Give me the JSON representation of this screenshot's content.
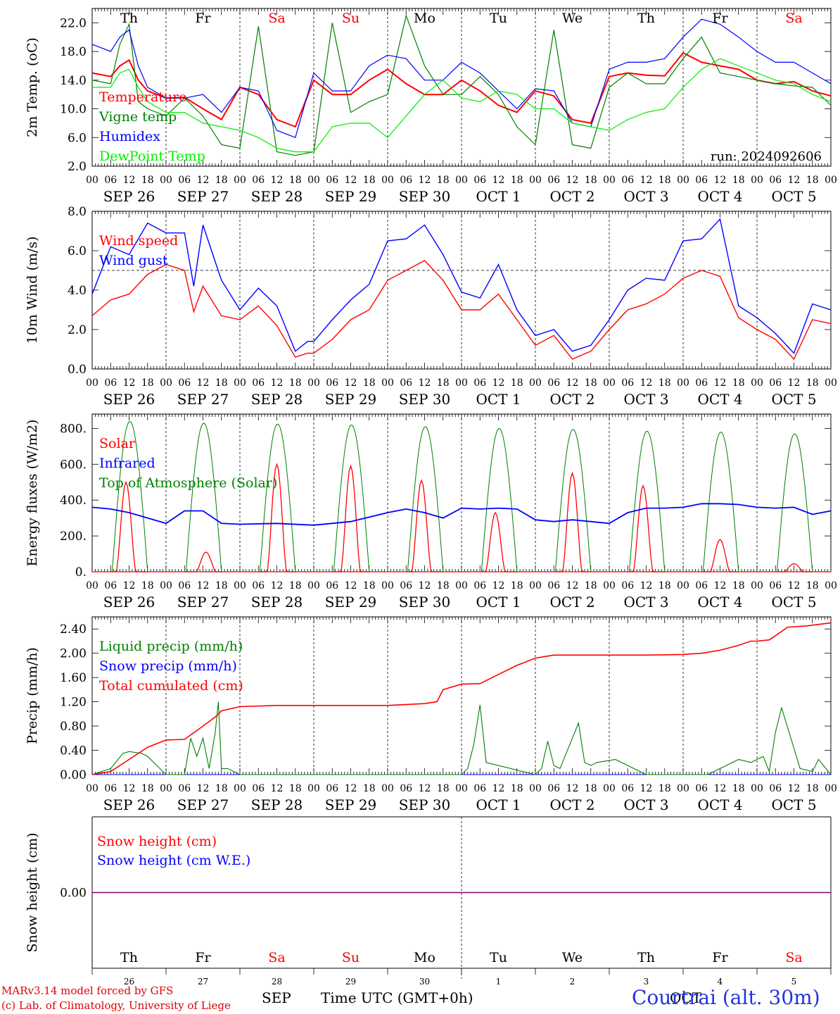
{
  "station": "Courtrai (alt. 30m)",
  "run_label": "run: 2024092606",
  "credits": [
    "MARv3.14 model forced by GFS",
    "(c) Lab. of Climatology, University of Liege"
  ],
  "time_axis_label": "Time UTC (GMT+0h)",
  "month_label_sep": "SEP",
  "month_label_oct": "OCT",
  "hour_ticks": [
    "00",
    "06",
    "12",
    "18"
  ],
  "end_tick": "00",
  "days": [
    {
      "weekday": "Th",
      "date": "SEP 26",
      "num": "26",
      "weekend": false
    },
    {
      "weekday": "Fr",
      "date": "SEP 27",
      "num": "27",
      "weekend": false
    },
    {
      "weekday": "Sa",
      "date": "SEP 28",
      "num": "28",
      "weekend": true
    },
    {
      "weekday": "Su",
      "date": "SEP 29",
      "num": "29",
      "weekend": true
    },
    {
      "weekday": "Mo",
      "date": "SEP 30",
      "num": "30",
      "weekend": false
    },
    {
      "weekday": "Tu",
      "date": "OCT  1",
      "num": "1",
      "weekend": false
    },
    {
      "weekday": "We",
      "date": "OCT  2",
      "num": "2",
      "weekend": false
    },
    {
      "weekday": "Th",
      "date": "OCT  3",
      "num": "3",
      "weekend": false
    },
    {
      "weekday": "Fr",
      "date": "OCT  4",
      "num": "4",
      "weekend": false
    },
    {
      "weekday": "Sa",
      "date": "OCT  5",
      "num": "5",
      "weekend": true
    }
  ],
  "colors": {
    "red": "#ff0000",
    "green": "#008000",
    "blue": "#0000ff",
    "lightgreen": "#00ee00",
    "purple": "#800080",
    "weekend": "#ff0000"
  },
  "chart_data": [
    {
      "type": "line",
      "id": "temp",
      "ylabel": "2m Temp. (oC)",
      "ylim": [
        2,
        24
      ],
      "yticks": [
        2,
        6,
        10,
        14,
        18,
        22
      ],
      "ytick_labels": [
        "2.0",
        "6.0",
        "10.0",
        "14.0",
        "18.0",
        "22.0"
      ],
      "x_unit": "hours since SEP 26 00 UTC",
      "xlim": [
        0,
        240
      ],
      "series": [
        {
          "name": "Temperature",
          "color": "red",
          "x": [
            0,
            6,
            9,
            12,
            15,
            18,
            24,
            30,
            36,
            42,
            48,
            54,
            60,
            66,
            72,
            78,
            84,
            90,
            96,
            102,
            108,
            114,
            120,
            126,
            132,
            138,
            144,
            150,
            156,
            162,
            168,
            174,
            180,
            186,
            192,
            198,
            204,
            210,
            216,
            222,
            228,
            234,
            240
          ],
          "y": [
            15,
            14.5,
            16,
            16.8,
            14,
            12.5,
            11.5,
            11.6,
            10,
            8.5,
            13,
            12,
            8.5,
            7.5,
            14,
            12,
            12,
            14,
            15.5,
            13.5,
            12,
            12,
            14,
            12.5,
            10.5,
            9.5,
            12.5,
            11.8,
            8.5,
            8,
            14.5,
            15,
            14.7,
            14.6,
            17.8,
            16.5,
            16,
            15.5,
            14,
            13.5,
            13.8,
            12.5,
            11.8
          ]
        },
        {
          "name": "Vigne temp",
          "color": "green",
          "x": [
            0,
            6,
            9,
            12,
            15,
            18,
            24,
            30,
            36,
            42,
            48,
            54,
            60,
            66,
            72,
            78,
            84,
            90,
            96,
            102,
            108,
            114,
            120,
            126,
            132,
            138,
            144,
            150,
            156,
            162,
            168,
            174,
            180,
            186,
            192,
            198,
            204,
            210,
            216,
            222,
            228,
            234,
            240
          ],
          "y": [
            14,
            13.5,
            19,
            21.8,
            11,
            10,
            9,
            11.5,
            9,
            5,
            4.5,
            21.5,
            4,
            3.5,
            4,
            22,
            9.5,
            11,
            12,
            23,
            16,
            12,
            12,
            14.5,
            12,
            7.5,
            5,
            21,
            5,
            4.5,
            13,
            15,
            13.5,
            13.5,
            17,
            20,
            15,
            14.5,
            14,
            13.5,
            13.2,
            13,
            10.5
          ]
        },
        {
          "name": "Humidex",
          "color": "blue",
          "x": [
            0,
            6,
            9,
            12,
            15,
            18,
            24,
            30,
            36,
            42,
            48,
            54,
            60,
            66,
            72,
            78,
            84,
            90,
            96,
            102,
            108,
            114,
            120,
            126,
            132,
            138,
            144,
            150,
            156,
            162,
            168,
            174,
            180,
            186,
            192,
            198,
            204,
            210,
            216,
            222,
            228,
            234,
            240
          ],
          "y": [
            19,
            18,
            20,
            21,
            16,
            13,
            11.5,
            11.5,
            12,
            9.5,
            13,
            12.5,
            7,
            6,
            15,
            12.5,
            12.5,
            16,
            17.5,
            17,
            14,
            14,
            16.5,
            15,
            12.5,
            10,
            12.8,
            12.5,
            8,
            7.5,
            15.5,
            16.5,
            16.5,
            17,
            20,
            22.5,
            21.8,
            20,
            18,
            16.5,
            16.5,
            15,
            13.5
          ]
        },
        {
          "name": "DewPoint Temp",
          "color": "lightgreen",
          "x": [
            0,
            6,
            9,
            12,
            15,
            18,
            24,
            30,
            36,
            42,
            48,
            54,
            60,
            66,
            72,
            78,
            84,
            90,
            96,
            102,
            108,
            114,
            120,
            126,
            132,
            138,
            144,
            150,
            156,
            162,
            168,
            174,
            180,
            186,
            192,
            198,
            204,
            210,
            216,
            222,
            228,
            234,
            240
          ],
          "y": [
            13,
            13,
            15,
            15.5,
            13,
            11,
            9.5,
            9.5,
            8,
            7.5,
            7,
            6,
            4.5,
            4,
            4,
            7.5,
            8,
            8,
            6,
            9,
            12,
            14,
            11.5,
            11,
            12.5,
            12,
            10,
            10,
            8,
            7.5,
            7,
            8.5,
            9.5,
            10,
            13,
            15.5,
            17,
            16,
            15,
            14,
            13.5,
            12,
            11
          ]
        }
      ]
    },
    {
      "type": "line",
      "id": "wind",
      "ylabel": "10m Wind (m/s)",
      "ylim": [
        0,
        8
      ],
      "yticks": [
        0,
        2,
        4,
        6,
        8
      ],
      "ytick_labels": [
        "0.0",
        "2.0",
        "4.0",
        "6.0",
        "8.0"
      ],
      "reference_line": 5,
      "x_unit": "hours since SEP 26 00 UTC",
      "xlim": [
        0,
        240
      ],
      "series": [
        {
          "name": "Wind speed",
          "color": "red",
          "x": [
            0,
            6,
            12,
            18,
            24,
            30,
            33,
            36,
            42,
            48,
            54,
            60,
            66,
            70,
            72,
            78,
            84,
            90,
            96,
            102,
            108,
            114,
            120,
            126,
            132,
            138,
            144,
            150,
            156,
            162,
            168,
            174,
            180,
            186,
            192,
            198,
            204,
            210,
            216,
            222,
            228,
            234,
            240
          ],
          "y": [
            2.7,
            3.5,
            3.8,
            4.8,
            5.3,
            5.0,
            2.9,
            4.2,
            2.7,
            2.5,
            3.2,
            2.2,
            0.6,
            0.8,
            0.8,
            1.5,
            2.5,
            3.0,
            4.5,
            5.0,
            5.5,
            4.5,
            3.0,
            3.0,
            3.8,
            2.5,
            1.2,
            1.7,
            0.5,
            0.9,
            2.0,
            3.0,
            3.3,
            3.8,
            4.6,
            5.0,
            4.7,
            2.6,
            2.0,
            1.5,
            0.5,
            2.5,
            2.3
          ]
        },
        {
          "name": "Wind gust",
          "color": "blue",
          "x": [
            0,
            6,
            12,
            18,
            24,
            30,
            33,
            36,
            42,
            48,
            54,
            60,
            66,
            70,
            72,
            78,
            84,
            90,
            96,
            102,
            108,
            114,
            120,
            126,
            132,
            138,
            144,
            150,
            156,
            162,
            168,
            174,
            180,
            186,
            192,
            198,
            204,
            210,
            216,
            222,
            228,
            234,
            240
          ],
          "y": [
            3.8,
            6.2,
            5.8,
            7.4,
            6.9,
            6.9,
            4.2,
            7.3,
            4.5,
            3.0,
            4.1,
            3.2,
            0.9,
            1.4,
            1.4,
            2.5,
            3.5,
            4.3,
            6.5,
            6.6,
            7.3,
            5.8,
            3.9,
            3.6,
            5.3,
            3.0,
            1.7,
            2.0,
            0.9,
            1.2,
            2.5,
            4.0,
            4.6,
            4.5,
            6.5,
            6.6,
            7.6,
            3.2,
            2.6,
            1.8,
            0.8,
            3.3,
            3.0
          ]
        }
      ]
    },
    {
      "type": "line",
      "id": "flux",
      "ylabel": "Energy fluxes (W/m2)",
      "ylim": [
        0,
        880
      ],
      "yticks": [
        0,
        200,
        400,
        600,
        800
      ],
      "ytick_labels": [
        "0.",
        "200.",
        "400.",
        "600.",
        "800."
      ],
      "x_unit": "hours since SEP 26 00 UTC",
      "xlim": [
        0,
        240
      ],
      "series": [
        {
          "name": "Solar",
          "color": "red",
          "peak_hour_of_day": [
            11,
            13,
            12,
            12,
            11,
            11,
            12,
            11,
            12,
            12
          ],
          "peak_value": [
            500,
            110,
            600,
            590,
            510,
            330,
            550,
            480,
            180,
            45
          ]
        },
        {
          "name": "Infrared",
          "color": "blue",
          "x": [
            0,
            6,
            12,
            18,
            24,
            30,
            36,
            42,
            48,
            60,
            72,
            84,
            96,
            102,
            108,
            114,
            120,
            126,
            132,
            138,
            144,
            150,
            156,
            162,
            168,
            174,
            180,
            186,
            192,
            198,
            204,
            210,
            216,
            222,
            228,
            234,
            240
          ],
          "y": [
            360,
            350,
            330,
            300,
            270,
            340,
            340,
            270,
            265,
            270,
            260,
            280,
            330,
            350,
            330,
            300,
            355,
            350,
            355,
            350,
            290,
            280,
            290,
            280,
            270,
            330,
            355,
            355,
            360,
            380,
            380,
            375,
            360,
            355,
            360,
            320,
            340
          ]
        },
        {
          "name": "Top of Atmosphere (Solar)",
          "color": "green",
          "peak_value": [
            840,
            830,
            825,
            820,
            810,
            800,
            795,
            785,
            780,
            770
          ]
        }
      ]
    },
    {
      "type": "line",
      "id": "precip",
      "ylabel": "Precip (mm/h)",
      "ylim": [
        0,
        2.6
      ],
      "yticks": [
        0,
        0.4,
        0.8,
        1.2,
        1.6,
        2.0,
        2.4
      ],
      "ytick_labels": [
        "0.00",
        "0.40",
        "0.80",
        "1.20",
        "1.60",
        "2.00",
        "2.40"
      ],
      "x_unit": "hours since SEP 26 00 UTC",
      "xlim": [
        0,
        240
      ],
      "series": [
        {
          "name": "Liquid precip (mm/h)",
          "color": "green",
          "x": [
            0,
            6,
            10,
            12,
            16,
            18,
            22,
            24,
            30,
            32,
            34,
            36,
            38,
            40,
            41,
            42,
            44,
            48,
            120,
            122,
            124,
            126,
            128,
            144,
            146,
            148,
            150,
            152,
            158,
            160,
            162,
            164,
            170,
            180,
            186,
            200,
            204,
            210,
            214,
            218,
            220,
            222,
            224,
            230,
            234,
            236,
            240
          ],
          "y": [
            0,
            0.1,
            0.35,
            0.38,
            0.35,
            0.3,
            0.1,
            0,
            0,
            0.6,
            0.3,
            0.6,
            0.1,
            0.7,
            1.2,
            0.1,
            0.1,
            0,
            0,
            0.1,
            0.5,
            1.15,
            0.2,
            0,
            0.1,
            0.55,
            0.15,
            0.1,
            0.85,
            0.2,
            0.15,
            0.2,
            0.25,
            0,
            0,
            0,
            0.1,
            0.25,
            0.2,
            0.3,
            0.05,
            0.7,
            1.1,
            0.1,
            0.05,
            0.25,
            0
          ]
        },
        {
          "name": "Snow precip (mm/h)",
          "color": "blue",
          "x": [
            0,
            240
          ],
          "y": [
            0,
            0
          ]
        },
        {
          "name": "Total cumulated (cm)",
          "color": "red",
          "x": [
            0,
            6,
            12,
            18,
            24,
            30,
            36,
            40,
            42,
            48,
            60,
            72,
            84,
            96,
            108,
            112,
            114,
            120,
            126,
            132,
            138,
            144,
            150,
            156,
            162,
            168,
            180,
            192,
            198,
            204,
            210,
            214,
            216,
            220,
            226,
            232,
            240
          ],
          "y": [
            0,
            0.05,
            0.25,
            0.45,
            0.57,
            0.58,
            0.8,
            0.95,
            1.05,
            1.12,
            1.14,
            1.14,
            1.14,
            1.14,
            1.17,
            1.2,
            1.4,
            1.49,
            1.5,
            1.65,
            1.8,
            1.92,
            1.97,
            1.97,
            1.97,
            1.97,
            1.97,
            1.98,
            2.0,
            2.05,
            2.13,
            2.2,
            2.2,
            2.22,
            2.43,
            2.45,
            2.5
          ]
        }
      ]
    },
    {
      "type": "line",
      "id": "snow",
      "ylabel": "Snow height (cm)",
      "ylim": [
        -1,
        1
      ],
      "yticks": [
        0
      ],
      "ytick_labels": [
        "0.00"
      ],
      "x_unit": "hours since SEP 26 00 UTC",
      "xlim": [
        0,
        240
      ],
      "series": [
        {
          "name": "Snow height (cm)",
          "color": "red",
          "x": [
            0,
            240
          ],
          "y": [
            0,
            0
          ]
        },
        {
          "name": "Snow height (cm W.E.)",
          "color": "blue",
          "x": [
            0,
            240
          ],
          "y": [
            0,
            0
          ]
        }
      ]
    }
  ]
}
